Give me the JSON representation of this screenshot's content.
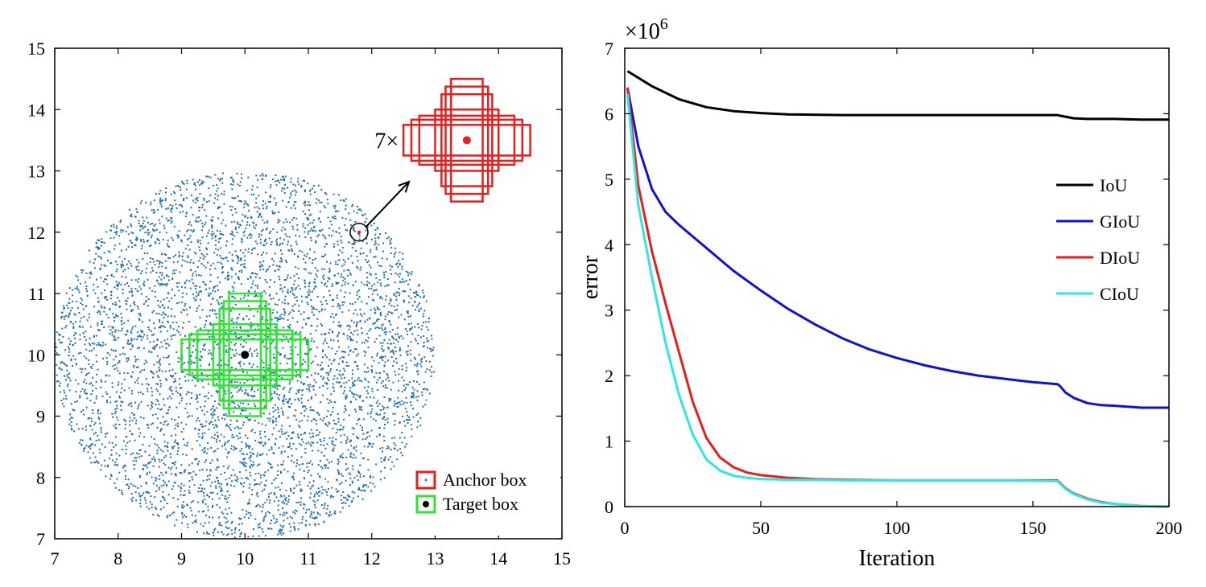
{
  "chart_data": [
    {
      "type": "scatter",
      "xlim": [
        7,
        15
      ],
      "ylim": [
        7,
        15
      ],
      "xticks": [
        "7",
        "8",
        "9",
        "10",
        "11",
        "12",
        "13",
        "14",
        "15"
      ],
      "yticks": [
        "7",
        "8",
        "9",
        "10",
        "11",
        "12",
        "13",
        "14",
        "15"
      ],
      "xlabel": "",
      "ylabel": "",
      "grid": false,
      "scatter_points": {
        "center": [
          10,
          10
        ],
        "radius": 3,
        "count": 5000,
        "color": "#1f6fb4"
      },
      "target_box": {
        "center": [
          10,
          10
        ],
        "color": "#2ee62e",
        "boxes": [
          {
            "w": 0.5,
            "h": 2.0
          },
          {
            "w": 0.67,
            "h": 1.75
          },
          {
            "w": 0.8,
            "h": 1.5
          },
          {
            "w": 1.0,
            "h": 1.0
          },
          {
            "w": 1.5,
            "h": 0.8
          },
          {
            "w": 1.75,
            "h": 0.67
          },
          {
            "w": 2.0,
            "h": 0.5
          }
        ]
      },
      "anchor_highlight": {
        "point": [
          11.8,
          12.0
        ],
        "zoom_center": [
          13.5,
          13.5
        ],
        "zoom_label": "7×",
        "color": "#e61e1e",
        "boxes": [
          {
            "w": 0.5,
            "h": 2.0
          },
          {
            "w": 0.67,
            "h": 1.75
          },
          {
            "w": 0.8,
            "h": 1.5
          },
          {
            "w": 1.0,
            "h": 1.0
          },
          {
            "w": 1.5,
            "h": 0.8
          },
          {
            "w": 1.75,
            "h": 0.67
          },
          {
            "w": 2.0,
            "h": 0.5
          }
        ]
      },
      "legend": {
        "placement": "bottom-right",
        "entries": [
          {
            "name": "Anchor box",
            "color": "#e61e1e"
          },
          {
            "name": "Target box",
            "color": "#2ee62e"
          }
        ]
      }
    },
    {
      "type": "line",
      "xlim": [
        0,
        200
      ],
      "ylim": [
        0,
        7
      ],
      "xticks": [
        "0",
        "50",
        "100",
        "150",
        "200"
      ],
      "yticks": [
        "0",
        "1",
        "2",
        "3",
        "4",
        "5",
        "6",
        "7"
      ],
      "xlabel": "Iteration",
      "ylabel": "error",
      "yexponent": "×10",
      "yexponent_power": "6",
      "grid": false,
      "legend": {
        "placement": "top-right"
      },
      "series": [
        {
          "name": "IoU",
          "color": "#000000",
          "x": [
            1,
            10,
            20,
            30,
            40,
            50,
            60,
            80,
            100,
            120,
            140,
            159,
            160,
            165,
            170,
            180,
            190,
            200
          ],
          "y": [
            6.65,
            6.42,
            6.22,
            6.1,
            6.04,
            6.01,
            5.99,
            5.98,
            5.98,
            5.98,
            5.98,
            5.98,
            5.97,
            5.93,
            5.92,
            5.92,
            5.91,
            5.91
          ]
        },
        {
          "name": "GIoU",
          "color": "#1010d8",
          "x": [
            1,
            5,
            10,
            15,
            20,
            30,
            40,
            50,
            60,
            70,
            80,
            90,
            100,
            110,
            120,
            130,
            140,
            150,
            159,
            160,
            162,
            165,
            170,
            175,
            180,
            190,
            200
          ],
          "y": [
            6.4,
            5.5,
            4.85,
            4.5,
            4.3,
            3.95,
            3.6,
            3.3,
            3.02,
            2.78,
            2.57,
            2.4,
            2.27,
            2.16,
            2.07,
            2.0,
            1.95,
            1.9,
            1.87,
            1.84,
            1.74,
            1.66,
            1.58,
            1.55,
            1.54,
            1.51,
            1.51
          ]
        },
        {
          "name": "DIoU",
          "color": "#e61e1e",
          "x": [
            1,
            5,
            10,
            15,
            20,
            25,
            30,
            35,
            40,
            45,
            50,
            60,
            70,
            80,
            100,
            120,
            140,
            159,
            160,
            162,
            165,
            170,
            175,
            180,
            190,
            200
          ],
          "y": [
            6.4,
            4.9,
            3.9,
            3.1,
            2.35,
            1.6,
            1.05,
            0.75,
            0.6,
            0.52,
            0.48,
            0.44,
            0.42,
            0.41,
            0.4,
            0.4,
            0.4,
            0.4,
            0.36,
            0.28,
            0.2,
            0.12,
            0.07,
            0.04,
            0.01,
            0.0
          ]
        },
        {
          "name": "CIoU",
          "color": "#2ee6e6",
          "x": [
            1,
            5,
            10,
            15,
            20,
            25,
            30,
            35,
            40,
            45,
            50,
            60,
            70,
            80,
            100,
            120,
            140,
            159,
            160,
            162,
            165,
            170,
            175,
            180,
            190,
            200
          ],
          "y": [
            6.3,
            4.6,
            3.5,
            2.5,
            1.7,
            1.1,
            0.72,
            0.55,
            0.47,
            0.44,
            0.42,
            0.41,
            0.41,
            0.4,
            0.4,
            0.4,
            0.4,
            0.39,
            0.35,
            0.27,
            0.19,
            0.11,
            0.06,
            0.04,
            0.01,
            0.0
          ]
        }
      ]
    }
  ]
}
